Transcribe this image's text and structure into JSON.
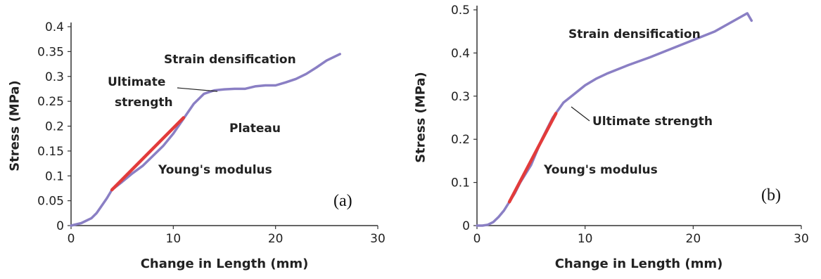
{
  "chart_data": [
    {
      "type": "line",
      "panel_label": "(a)",
      "xlabel": "Change in Length (mm)",
      "ylabel": "Stress (MPa)",
      "xlim": [
        0,
        30
      ],
      "ylim": [
        0,
        0.4
      ],
      "xticks": [
        "0",
        "10",
        "20",
        "30"
      ],
      "yticks": [
        "0",
        "0.05",
        "0.1",
        "0.15",
        "0.2",
        "0.25",
        "0.3",
        "0.35",
        "0.4"
      ],
      "grid": false,
      "colors": {
        "curve": "#8a7fc4",
        "modulus": "#e23b3b"
      },
      "series": [
        {
          "x": [
            0,
            1,
            2,
            2.5,
            3,
            3.5,
            4,
            5,
            6,
            7,
            8,
            9,
            10,
            11,
            12,
            13,
            14,
            15,
            16,
            17,
            18,
            19,
            20,
            21,
            22,
            23,
            24,
            25,
            26.3
          ],
          "y": [
            0,
            0.005,
            0.015,
            0.025,
            0.04,
            0.055,
            0.072,
            0.088,
            0.105,
            0.12,
            0.14,
            0.16,
            0.185,
            0.215,
            0.245,
            0.265,
            0.272,
            0.274,
            0.275,
            0.275,
            0.28,
            0.282,
            0.282,
            0.288,
            0.295,
            0.305,
            0.318,
            0.332,
            0.345
          ]
        },
        {
          "x": [
            4,
            11
          ],
          "y": [
            0.072,
            0.217
          ]
        }
      ],
      "annotations": [
        {
          "text": "Strain densification"
        },
        {
          "text": "Ultimate"
        },
        {
          "text": "strength"
        },
        {
          "text": "Plateau"
        },
        {
          "text": "Young's modulus"
        }
      ]
    },
    {
      "type": "line",
      "panel_label": "(b)",
      "xlabel": "Change in Length (mm)",
      "ylabel": "Stress (MPa)",
      "xlim": [
        0,
        30
      ],
      "ylim": [
        0,
        0.5
      ],
      "xticks": [
        "0",
        "10",
        "20",
        "30"
      ],
      "yticks": [
        "0",
        "0.1",
        "0.2",
        "0.3",
        "0.4",
        "0.5"
      ],
      "grid": false,
      "colors": {
        "curve": "#8a7fc4",
        "modulus": "#e23b3b"
      },
      "series": [
        {
          "x": [
            0,
            0.5,
            1,
            1.5,
            2,
            2.5,
            3,
            3.5,
            4,
            5,
            6,
            7,
            8,
            9,
            10,
            11,
            12,
            14,
            16,
            18,
            20,
            22,
            24,
            25,
            25.4
          ],
          "y": [
            0,
            0,
            0.002,
            0.008,
            0.02,
            0.035,
            0.055,
            0.075,
            0.1,
            0.14,
            0.2,
            0.25,
            0.285,
            0.305,
            0.325,
            0.34,
            0.352,
            0.372,
            0.39,
            0.41,
            0.43,
            0.45,
            0.478,
            0.492,
            0.475
          ]
        },
        {
          "x": [
            3,
            7.3
          ],
          "y": [
            0.055,
            0.26
          ]
        }
      ],
      "annotations": [
        {
          "text": "Strain densification"
        },
        {
          "text": "Ultimate strength"
        },
        {
          "text": "Young's modulus"
        }
      ]
    }
  ]
}
